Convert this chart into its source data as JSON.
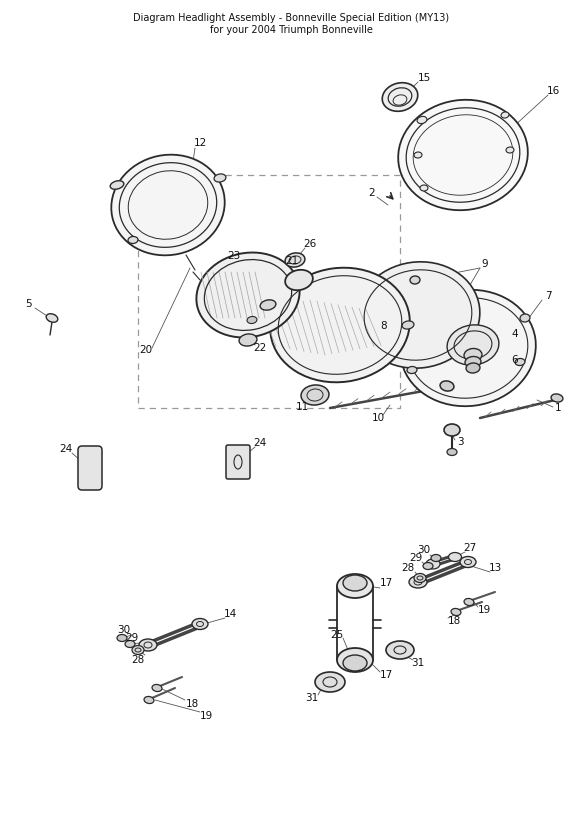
{
  "bg_color": "#ffffff",
  "line_color": "#2a2a2a",
  "title": "Diagram Headlight Assembly - Bonneville Special Edition (MY13)\nfor your 2004 Triumph Bonneville"
}
